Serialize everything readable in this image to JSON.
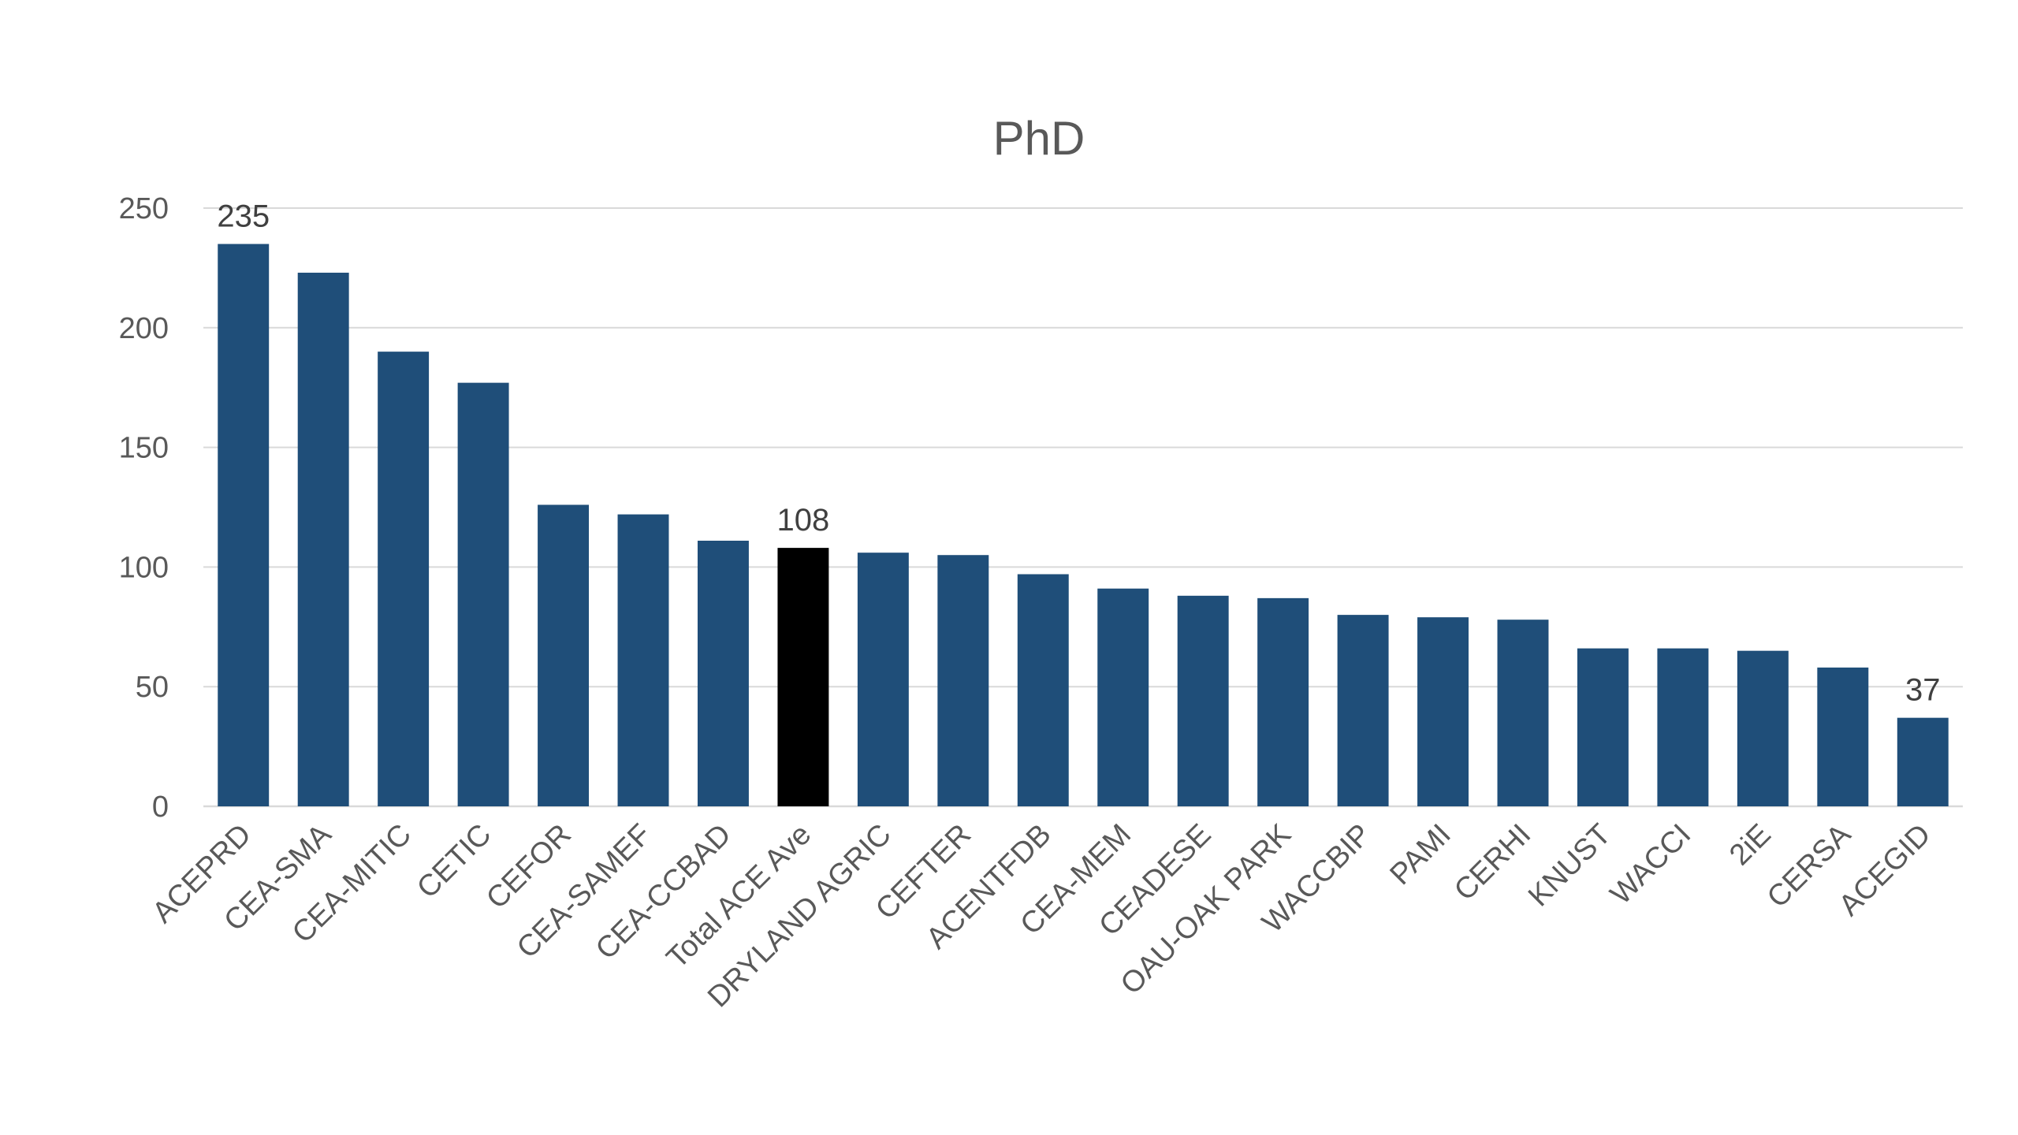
{
  "chart_data": {
    "type": "bar",
    "title": "PhD",
    "xlabel": "",
    "ylabel": "",
    "ylim": [
      0,
      250
    ],
    "yticks": [
      0,
      50,
      100,
      150,
      200,
      250
    ],
    "grid": true,
    "legend": "none",
    "categories": [
      "ACEPRD",
      "CEA-SMA",
      "CEA-MITIC",
      "CETIC",
      "CEFOR",
      "CEA-SAMEF",
      "CEA-CCBAD",
      "Total ACE Ave",
      "DRYLAND AGRIC",
      "CEFTER",
      "ACENTFDB",
      "CEA-MEM",
      "CEADESE",
      "OAU-OAK PARK",
      "WACCBIP",
      "PAMI",
      "CERHI",
      "KNUST",
      "WACCI",
      "2iE",
      "CERSA",
      "ACEGID"
    ],
    "values": [
      235,
      223,
      190,
      177,
      126,
      122,
      111,
      108,
      106,
      105,
      97,
      91,
      88,
      87,
      80,
      79,
      78,
      66,
      66,
      65,
      58,
      37
    ],
    "data_labels": [
      {
        "index": 0,
        "text": "235"
      },
      {
        "index": 7,
        "text": "108"
      },
      {
        "index": 21,
        "text": "37"
      }
    ],
    "colors": {
      "default_bar": "#1f4e79",
      "highlight_bar": "#000000",
      "highlight_index": 7
    }
  }
}
